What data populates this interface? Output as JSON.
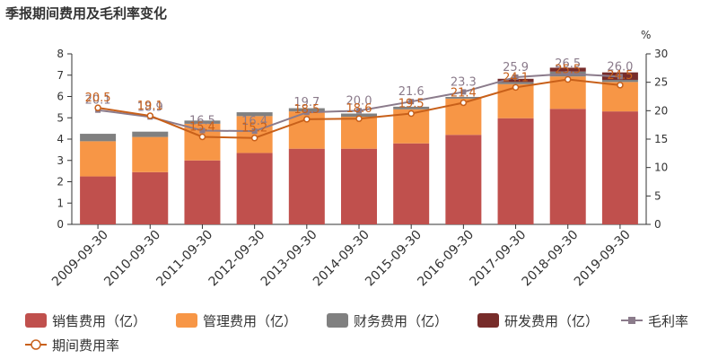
{
  "title": "季报期间费用及毛利率变化",
  "chart_data": {
    "type": "bar",
    "stacked": true,
    "categories": [
      "2009-09-30",
      "2010-09-30",
      "2011-09-30",
      "2012-09-30",
      "2013-09-30",
      "2014-09-30",
      "2015-09-30",
      "2016-09-30",
      "2017-09-30",
      "2018-09-30",
      "2019-09-30"
    ],
    "series": [
      {
        "name": "销售费用（亿）",
        "color": "#c0504d",
        "axis": "left",
        "values": [
          2.25,
          2.45,
          3.0,
          3.35,
          3.55,
          3.55,
          3.8,
          4.2,
          4.98,
          5.42,
          5.3
        ]
      },
      {
        "name": "管理费用（亿）",
        "color": "#f79646",
        "axis": "left",
        "values": [
          1.65,
          1.65,
          1.72,
          1.73,
          1.75,
          1.5,
          1.6,
          1.7,
          1.6,
          1.52,
          1.38
        ]
      },
      {
        "name": "财务费用（亿）",
        "color": "#808080",
        "axis": "left",
        "values": [
          0.35,
          0.25,
          0.15,
          0.18,
          0.15,
          0.15,
          0.12,
          0.08,
          0.1,
          0.23,
          0.1
        ]
      },
      {
        "name": "研发费用（亿）",
        "color": "#772c2a",
        "axis": "left",
        "values": [
          0,
          0,
          0,
          0,
          0,
          0,
          0,
          0,
          0.15,
          0.18,
          0.35
        ]
      }
    ],
    "lines": [
      {
        "name": "毛利率",
        "color": "#8b7b8b",
        "marker": "square",
        "axis": "right",
        "values": [
          20.1,
          18.9,
          16.5,
          16.4,
          19.7,
          20.0,
          21.6,
          23.3,
          25.9,
          26.5,
          26.0
        ],
        "labels": [
          "20.1",
          "18.9",
          "16.5",
          "16.4",
          "19.7",
          "20.0",
          "21.6",
          "23.3",
          "25.9",
          "26.5",
          "26.0"
        ]
      },
      {
        "name": "期间费用率",
        "color": "#c8601a",
        "marker": "circle",
        "axis": "right",
        "values": [
          20.5,
          19.1,
          15.4,
          15.2,
          18.5,
          18.6,
          19.5,
          21.4,
          24.1,
          25.5,
          24.5
        ],
        "labels": [
          "20.5",
          "19.1",
          "15.4",
          "15.2",
          "18.5",
          "18.6",
          "19.5",
          "21.4",
          "24.1",
          "25.5",
          "24.5"
        ]
      }
    ],
    "left_axis": {
      "ylim": [
        0,
        8
      ],
      "ticks": [
        "0",
        "1",
        "2",
        "3",
        "4",
        "5",
        "6",
        "7",
        "8"
      ]
    },
    "right_axis": {
      "unit": "%",
      "ylim": [
        0,
        30
      ],
      "ticks": [
        "0",
        "5",
        "10",
        "15",
        "20",
        "25",
        "30"
      ]
    },
    "legend_position": "bottom",
    "grid": false
  }
}
